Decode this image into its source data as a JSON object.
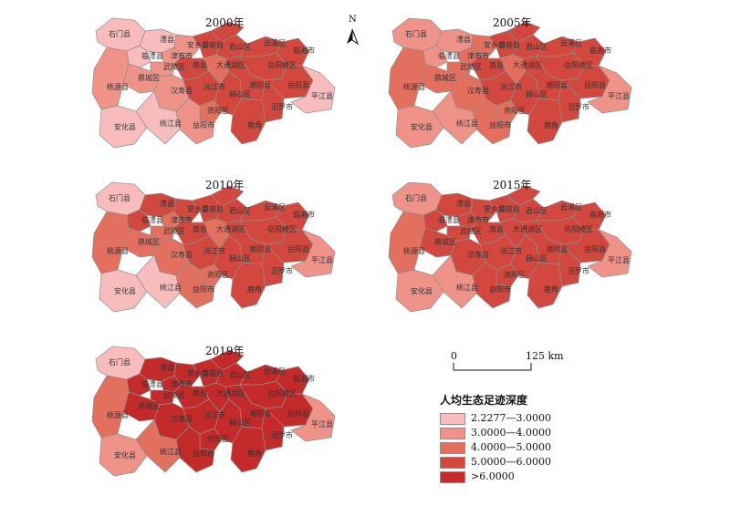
{
  "panels": [
    {
      "year": "2000年",
      "counties": {
        "shimen": 1,
        "lixian": 1,
        "linli": 1,
        "jinshi": 2,
        "anxiang": 2,
        "huarong": 4,
        "junshan": 4,
        "yunxi": 4,
        "linxiang": 4,
        "anxiang_e": 4,
        "wuling": 2,
        "dingcheng": 2,
        "taoyuan": 2,
        "hanshou": 2,
        "nanxian": 4,
        "yuanjiang": 4,
        "yueyanglou": 4,
        "yueyang": 4,
        "datong": 3,
        "ziyang": 3,
        "heshan": 4,
        "xiangyin": 4,
        "miluo": 4,
        "pingjiang": 1,
        "anhua": 1,
        "taojiang": 1,
        "yiyang": 2,
        "lukou": 4
      }
    },
    {
      "year": "2005年",
      "counties": {
        "shimen": 2,
        "lixian": 2,
        "linli": 2,
        "jinshi": 3,
        "anxiang": 3,
        "huarong": 4,
        "junshan": 4,
        "yunxi": 4,
        "linxiang": 4,
        "anxiang_e": 4,
        "wuling": 3,
        "dingcheng": 3,
        "taoyuan": 3,
        "hanshou": 3,
        "nanxian": 4,
        "yuanjiang": 4,
        "yueyanglou": 4,
        "yueyang": 4,
        "datong": 3,
        "ziyang": 3,
        "heshan": 4,
        "xiangyin": 4,
        "miluo": 4,
        "pingjiang": 2,
        "anhua": 2,
        "taojiang": 2,
        "yiyang": 3,
        "lukou": 4
      }
    },
    {
      "year": "2010年",
      "counties": {
        "shimen": 1,
        "lixian": 4,
        "linli": 4,
        "jinshi": 3,
        "anxiang": 4,
        "huarong": 4,
        "junshan": 4,
        "yunxi": 4,
        "linxiang": 4,
        "anxiang_e": 4,
        "wuling": 3,
        "dingcheng": 3,
        "taoyuan": 3,
        "hanshou": 3,
        "nanxian": 4,
        "yuanjiang": 4,
        "yueyanglou": 4,
        "yueyang": 4,
        "datong": 3,
        "ziyang": 3,
        "heshan": 4,
        "xiangyin": 4,
        "miluo": 4,
        "pingjiang": 2,
        "anhua": 1,
        "taojiang": 1,
        "yiyang": 3,
        "lukou": 4
      }
    },
    {
      "year": "2015年",
      "counties": {
        "shimen": 2,
        "lixian": 4,
        "linli": 4,
        "jinshi": 4,
        "anxiang": 4,
        "huarong": 4,
        "junshan": 4,
        "yunxi": 4,
        "linxiang": 4,
        "anxiang_e": 4,
        "wuling": 4,
        "dingcheng": 4,
        "taoyuan": 3,
        "hanshou": 4,
        "nanxian": 4,
        "yuanjiang": 4,
        "yueyanglou": 4,
        "yueyang": 4,
        "datong": 4,
        "ziyang": 4,
        "heshan": 4,
        "xiangyin": 4,
        "miluo": 4,
        "pingjiang": 2,
        "anhua": 2,
        "taojiang": 2,
        "yiyang": 4,
        "lukou": 4
      }
    },
    {
      "year": "2019年",
      "counties": {
        "shimen": 1,
        "lixian": 5,
        "linli": 5,
        "jinshi": 5,
        "anxiang": 5,
        "huarong": 5,
        "junshan": 5,
        "yunxi": 5,
        "linxiang": 5,
        "anxiang_e": 5,
        "wuling": 5,
        "dingcheng": 5,
        "taoyuan": 3,
        "hanshou": 5,
        "nanxian": 5,
        "yuanjiang": 5,
        "yueyanglou": 5,
        "yueyang": 5,
        "datong": 5,
        "ziyang": 5,
        "heshan": 5,
        "xiangyin": 5,
        "miluo": 5,
        "pingjiang": 2,
        "anhua": 2,
        "taojiang": 3,
        "yiyang": 5,
        "lukou": 5
      }
    }
  ],
  "map_labels": {
    "shimen": "石门县",
    "lixian": "澧县",
    "linli": "临澧县",
    "jinshi": "津市市",
    "anxiang": "安乡县",
    "huarong": "华容县",
    "junshan": "君山区",
    "yunxi": "云溪区",
    "linxiang": "临湘市",
    "wuling": "武陵区",
    "dingcheng": "鼎城区",
    "taoyuan": "桃源县",
    "hanshou": "汉寿县",
    "nanxian": "南县",
    "yuanjiang": "沅江市",
    "yueyanglou": "岳阳楼区",
    "yueyang": "岳阳县",
    "datong": "大通湖区",
    "ziyang": "资阳区",
    "heshan": "赫山区",
    "xiangyin": "湘阴县",
    "miluo": "汨罗市",
    "pingjiang": "平江县",
    "anhua": "安化县",
    "taojiang": "桃江县",
    "yiyang": "益阳市",
    "lukou": "鹿角"
  },
  "north_arrow": "N",
  "scale_bar": {
    "left_label": "0",
    "right_label": "125 km"
  },
  "legend": {
    "title": "人均生态足迹深度",
    "classes": [
      {
        "label": "2.2277—3.0000",
        "color": "#f8bcbd"
      },
      {
        "label": "3.0000—4.0000",
        "color": "#ef9288"
      },
      {
        "label": "4.0000—5.0000",
        "color": "#e36f5f"
      },
      {
        "label": "5.0000—6.0000",
        "color": "#d2473e"
      },
      {
        "label": ">6.0000",
        "color": "#c42a2a"
      }
    ]
  }
}
